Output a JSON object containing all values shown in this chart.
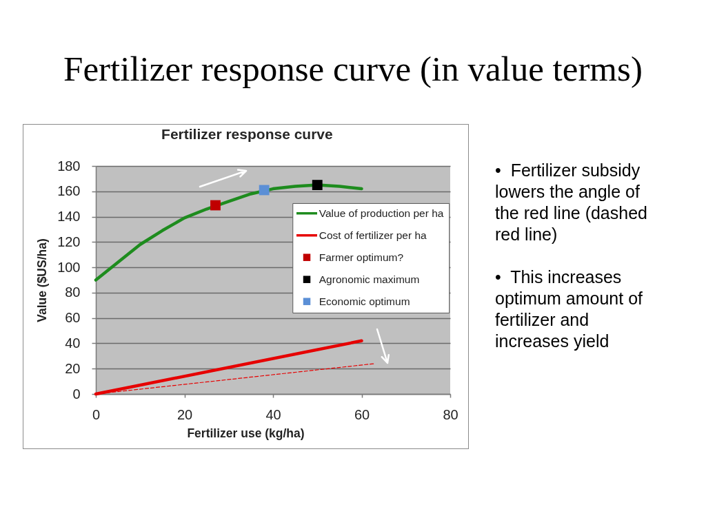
{
  "chart_data": {
    "type": "line",
    "title": "Fertilizer response curve (in value terms)",
    "subtitle": "Fertilizer response curve",
    "xlabel": "Fertilizer use (kg/ha)",
    "ylabel": "Value ($US/ha)",
    "xlim": [
      0,
      80
    ],
    "xticks": [
      0,
      20,
      40,
      60,
      80
    ],
    "ylim": [
      0,
      180
    ],
    "yticks": [
      0,
      20,
      40,
      60,
      80,
      100,
      120,
      140,
      160,
      180
    ],
    "grid": "y",
    "legend": "right",
    "series": [
      {
        "name": "Value of production per ha",
        "color": "#1e8c1e",
        "x": [
          0,
          5,
          10,
          15,
          20,
          25,
          30,
          35,
          40,
          45,
          50,
          55,
          60
        ],
        "values": [
          90,
          104,
          118,
          129,
          139,
          146,
          152,
          158,
          162,
          164,
          165,
          164,
          162
        ]
      },
      {
        "name": "Cost of fertilizer per ha",
        "color": "#e60000",
        "x": [
          0,
          60
        ],
        "values": [
          0,
          42
        ]
      },
      {
        "name": "Farmer optimum?",
        "type": "scatter",
        "marker": "square",
        "color": "#c00000",
        "x": [
          27
        ],
        "values": [
          149
        ]
      },
      {
        "name": "Agronomic maximum",
        "type": "scatter",
        "marker": "square",
        "color": "#000000",
        "x": [
          50
        ],
        "values": [
          165
        ]
      },
      {
        "name": "Economic optimum",
        "type": "scatter",
        "marker": "square",
        "color": "#5b8fd6",
        "x": [
          38
        ],
        "values": [
          161
        ]
      },
      {
        "line_style": "dashed",
        "color": "#e60000",
        "x": [
          0,
          63
        ],
        "values": [
          0,
          24
        ]
      }
    ],
    "annotations": [
      "•  Fertilizer subsidy lowers the angle of the red line (dashed red line)",
      "•  This increases optimum amount of fertilizer and increases yield"
    ]
  }
}
